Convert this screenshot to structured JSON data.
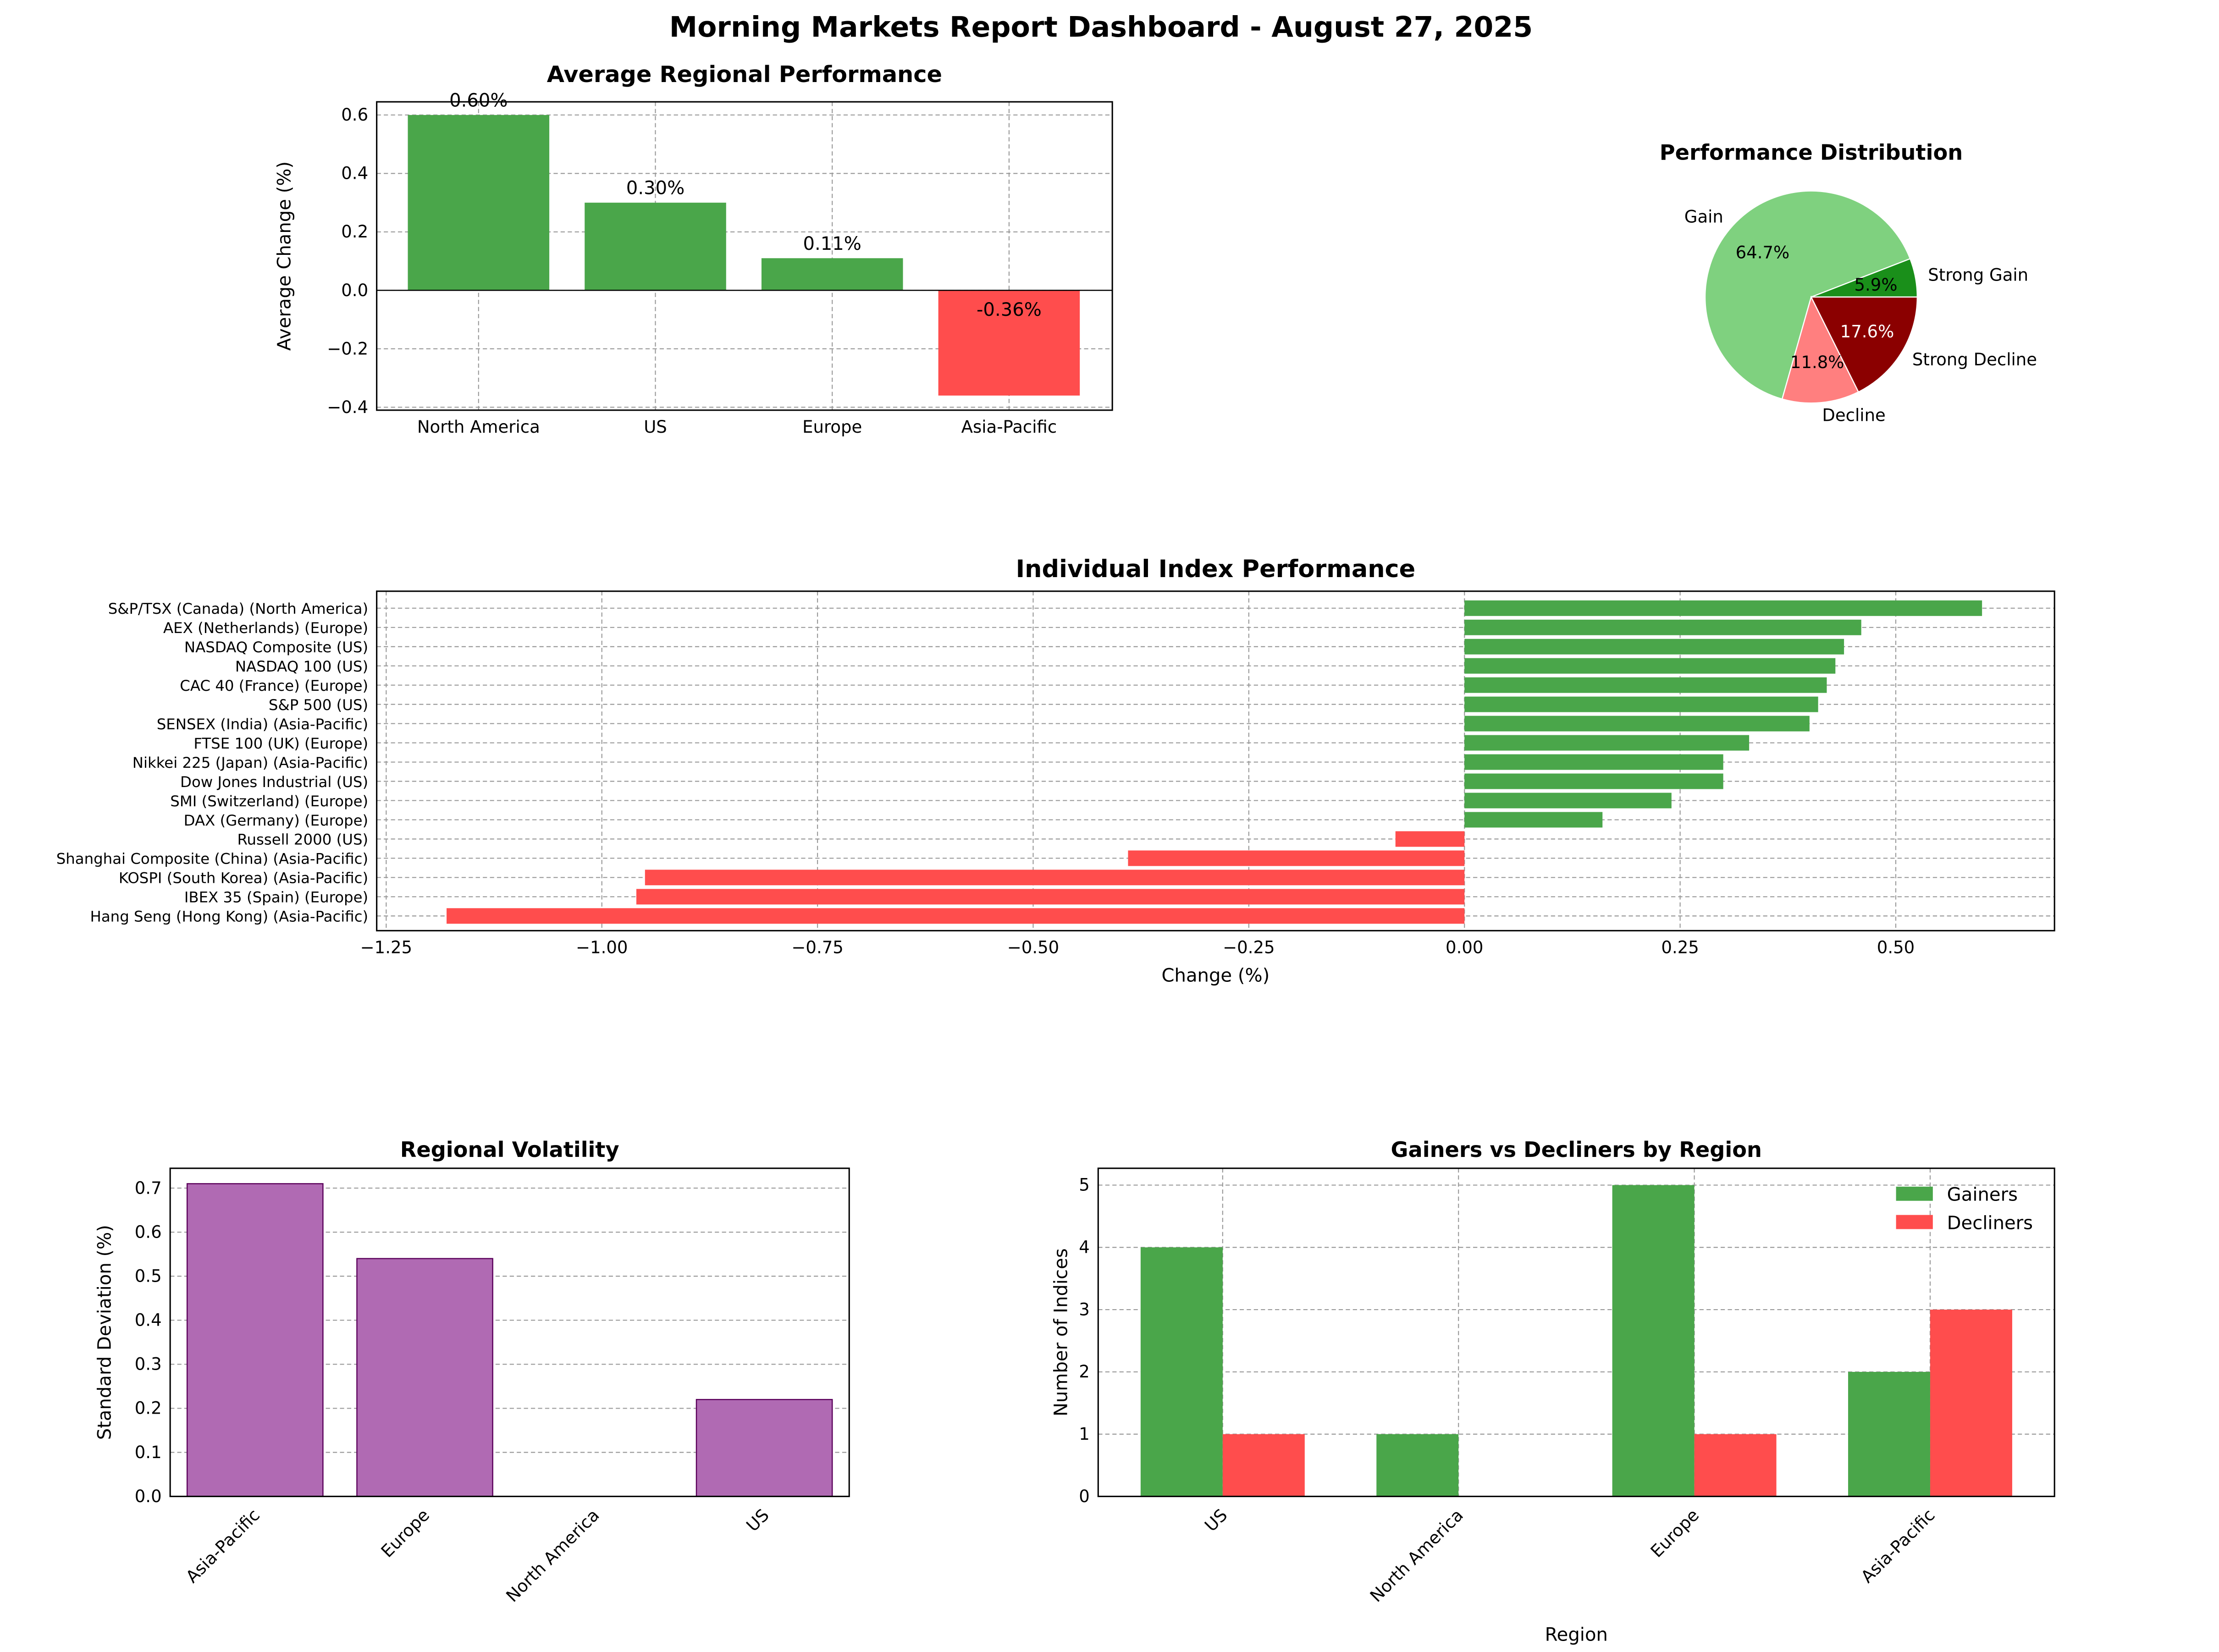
{
  "title": "Morning Markets Report Dashboard - August 27, 2025",
  "colors": {
    "gain": "#4aa64a",
    "decline": "#ff4d4d",
    "volatility": "#b06ab3"
  },
  "chart_data": [
    {
      "type": "bar",
      "title": "Average Regional Performance",
      "ylabel": "Average Change (%)",
      "xlabel": "",
      "categories": [
        "North America",
        "US",
        "Europe",
        "Asia-Pacific"
      ],
      "values": [
        0.6,
        0.3,
        0.11,
        -0.36
      ],
      "data_labels": [
        "0.60%",
        "0.30%",
        "0.11%",
        "-0.36%"
      ],
      "ylim": [
        -0.41,
        0.645
      ],
      "yticks": [
        -0.4,
        -0.2,
        0.0,
        0.2,
        0.4,
        0.6
      ],
      "grid": true
    },
    {
      "type": "pie",
      "title": "Performance Distribution",
      "labels": [
        "Strong Gain",
        "Gain",
        "Decline",
        "Strong Decline"
      ],
      "values": [
        1,
        11,
        2,
        3
      ],
      "pct_labels": [
        "5.9%",
        "64.7%",
        "11.8%",
        "17.6%"
      ],
      "colors": [
        "#1a8f1a",
        "#7fd17f",
        "#ff7f7f",
        "#8b0000"
      ]
    },
    {
      "type": "bar",
      "orientation": "horizontal",
      "title": "Individual Index Performance",
      "xlabel": "Change (%)",
      "ylabel": "",
      "categories": [
        "S&P/TSX (Canada) (North America)",
        "AEX (Netherlands) (Europe)",
        "NASDAQ Composite (US)",
        "NASDAQ 100 (US)",
        "CAC 40 (France) (Europe)",
        "S&P 500 (US)",
        "SENSEX (India) (Asia-Pacific)",
        "FTSE 100 (UK) (Europe)",
        "Nikkei 225 (Japan) (Asia-Pacific)",
        "Dow Jones Industrial (US)",
        "SMI (Switzerland) (Europe)",
        "DAX (Germany) (Europe)",
        "Russell 2000 (US)",
        "Shanghai Composite (China) (Asia-Pacific)",
        "KOSPI (South Korea) (Asia-Pacific)",
        "IBEX 35 (Spain) (Europe)",
        "Hang Seng (Hong Kong) (Asia-Pacific)"
      ],
      "values": [
        0.6,
        0.46,
        0.44,
        0.43,
        0.42,
        0.41,
        0.4,
        0.33,
        0.3,
        0.3,
        0.24,
        0.16,
        -0.08,
        -0.39,
        -0.95,
        -0.96,
        -1.18
      ],
      "xlim": [
        -1.261,
        0.684
      ],
      "xticks": [
        -1.25,
        -1.0,
        -0.75,
        -0.5,
        -0.25,
        0.0,
        0.25,
        0.5
      ],
      "xtick_labels": [
        "−1.25",
        "−1.00",
        "−0.75",
        "−0.50",
        "−0.25",
        "0.00",
        "0.25",
        "0.50"
      ],
      "grid": true
    },
    {
      "type": "bar",
      "title": "Regional Volatility",
      "ylabel": "Standard Deviation (%)",
      "xlabel": "",
      "categories": [
        "Asia-Pacific",
        "Europe",
        "North America",
        "US"
      ],
      "values": [
        0.71,
        0.54,
        0,
        0.22
      ],
      "ylim": [
        0,
        0.745
      ],
      "yticks": [
        0.0,
        0.1,
        0.2,
        0.3,
        0.4,
        0.5,
        0.6,
        0.7
      ],
      "grid": true
    },
    {
      "type": "bar",
      "title": "Gainers vs Decliners by Region",
      "xlabel": "Region",
      "ylabel": "Number of Indices",
      "categories": [
        "US",
        "North America",
        "Europe",
        "Asia-Pacific"
      ],
      "series": [
        {
          "name": "Gainers",
          "values": [
            4,
            1,
            5,
            2
          ]
        },
        {
          "name": "Decliners",
          "values": [
            1,
            0,
            1,
            3
          ]
        }
      ],
      "ylim": [
        0,
        5.27
      ],
      "yticks": [
        0,
        1,
        2,
        3,
        4,
        5
      ],
      "legend": "top-right",
      "grid": true
    }
  ]
}
